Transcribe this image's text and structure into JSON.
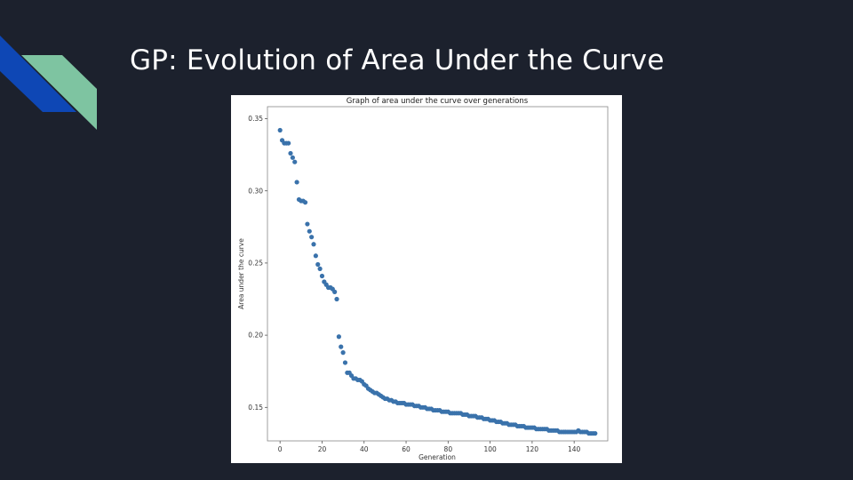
{
  "slide": {
    "title": "GP: Evolution of Area Under the Curve",
    "decor_colors": {
      "blue": "#0e47b5",
      "green": "#7ec4a1"
    }
  },
  "chart_data": {
    "type": "scatter",
    "title": "Graph of area under the curve over generations",
    "xlabel": "Generation",
    "ylabel": "Area under the curve",
    "xlim": [
      -6,
      156
    ],
    "ylim": [
      0.1268,
      0.3583
    ],
    "xticks": [
      0,
      20,
      40,
      60,
      80,
      100,
      120,
      140
    ],
    "yticks": [
      0.15,
      0.2,
      0.25,
      0.3,
      0.35
    ],
    "ytick_labels": [
      "0.15",
      "0.20",
      "0.25",
      "0.30",
      "0.35"
    ],
    "grid": false,
    "legend": "none",
    "marker_color": "#3a72ab",
    "x": [
      0,
      1,
      2,
      3,
      4,
      5,
      6,
      7,
      8,
      9,
      10,
      11,
      12,
      13,
      14,
      15,
      16,
      17,
      18,
      19,
      20,
      21,
      22,
      23,
      24,
      25,
      26,
      27,
      28,
      29,
      30,
      31,
      32,
      33,
      34,
      35,
      36,
      37,
      38,
      39,
      40,
      41,
      42,
      43,
      44,
      45,
      46,
      47,
      48,
      49,
      50,
      51,
      52,
      53,
      54,
      55,
      56,
      57,
      58,
      59,
      60,
      61,
      62,
      63,
      64,
      65,
      66,
      67,
      68,
      69,
      70,
      71,
      72,
      73,
      74,
      75,
      76,
      77,
      78,
      79,
      80,
      81,
      82,
      83,
      84,
      85,
      86,
      87,
      88,
      89,
      90,
      91,
      92,
      93,
      94,
      95,
      96,
      97,
      98,
      99,
      100,
      101,
      102,
      103,
      104,
      105,
      106,
      107,
      108,
      109,
      110,
      111,
      112,
      113,
      114,
      115,
      116,
      117,
      118,
      119,
      120,
      121,
      122,
      123,
      124,
      125,
      126,
      127,
      128,
      129,
      130,
      131,
      132,
      133,
      134,
      135,
      136,
      137,
      138,
      139,
      140,
      141,
      142,
      143,
      144,
      145,
      146,
      147,
      148,
      149,
      150
    ],
    "y": [
      0.342,
      0.335,
      0.333,
      0.333,
      0.333,
      0.326,
      0.323,
      0.32,
      0.306,
      0.294,
      0.293,
      0.293,
      0.292,
      0.277,
      0.272,
      0.268,
      0.263,
      0.255,
      0.249,
      0.246,
      0.241,
      0.237,
      0.235,
      0.233,
      0.233,
      0.232,
      0.23,
      0.225,
      0.199,
      0.192,
      0.188,
      0.181,
      0.174,
      0.174,
      0.172,
      0.17,
      0.17,
      0.169,
      0.169,
      0.168,
      0.166,
      0.165,
      0.163,
      0.162,
      0.161,
      0.16,
      0.16,
      0.159,
      0.158,
      0.157,
      0.156,
      0.156,
      0.155,
      0.155,
      0.154,
      0.154,
      0.153,
      0.153,
      0.153,
      0.153,
      0.152,
      0.152,
      0.152,
      0.152,
      0.151,
      0.151,
      0.151,
      0.15,
      0.15,
      0.15,
      0.149,
      0.149,
      0.149,
      0.148,
      0.148,
      0.148,
      0.148,
      0.147,
      0.147,
      0.147,
      0.147,
      0.146,
      0.146,
      0.146,
      0.146,
      0.146,
      0.146,
      0.145,
      0.145,
      0.145,
      0.144,
      0.144,
      0.144,
      0.144,
      0.143,
      0.143,
      0.143,
      0.142,
      0.142,
      0.142,
      0.141,
      0.141,
      0.141,
      0.14,
      0.14,
      0.14,
      0.139,
      0.139,
      0.139,
      0.138,
      0.138,
      0.138,
      0.138,
      0.137,
      0.137,
      0.137,
      0.137,
      0.136,
      0.136,
      0.136,
      0.136,
      0.136,
      0.135,
      0.135,
      0.135,
      0.135,
      0.135,
      0.135,
      0.134,
      0.134,
      0.134,
      0.134,
      0.134,
      0.133,
      0.133,
      0.133,
      0.133,
      0.133,
      0.133,
      0.133,
      0.133,
      0.133,
      0.134,
      0.133,
      0.133,
      0.133,
      0.133,
      0.132,
      0.132,
      0.132,
      0.132
    ]
  }
}
